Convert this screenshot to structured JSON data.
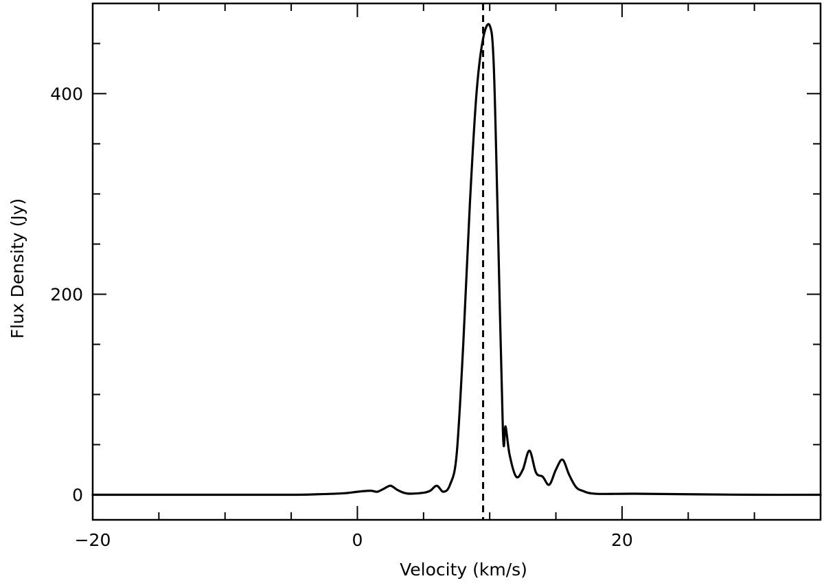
{
  "chart_data": {
    "type": "line",
    "title": "",
    "xlabel": "Velocity (km/s)",
    "ylabel": "Flux Density (Jy)",
    "xlim": [
      -20,
      35
    ],
    "ylim": [
      -25,
      490
    ],
    "x_ticks": [
      -20,
      0,
      20
    ],
    "x_tick_labels": [
      "−20",
      "0",
      "20"
    ],
    "y_ticks": [
      0,
      200,
      400
    ],
    "y_tick_labels": [
      "0",
      "200",
      "400"
    ],
    "x_minor_step": 5,
    "y_minor_step": 50,
    "grid": false,
    "reference_line": {
      "x": 9.5,
      "style": "dashed"
    },
    "series": [
      {
        "x": [
          -20,
          -10,
          -5,
          -3,
          -1,
          0,
          1,
          1.5,
          2,
          2.5,
          3,
          3.5,
          4,
          5,
          5.5,
          6,
          6.5,
          7,
          7.5,
          8,
          8.5,
          9,
          9.5,
          10,
          10.3,
          10.6,
          11,
          11.2,
          11.5,
          12,
          12.5,
          13,
          13.5,
          14,
          14.5,
          15,
          15.5,
          16,
          16.5,
          17,
          18,
          21,
          25,
          30,
          35
        ],
        "y": [
          0,
          0,
          0,
          0.5,
          1.5,
          3,
          4,
          3,
          6,
          9,
          5,
          2,
          1,
          2,
          4,
          9,
          3,
          10,
          40,
          150,
          290,
          400,
          455,
          468,
          430,
          280,
          62,
          68,
          40,
          18,
          25,
          44,
          22,
          18,
          10,
          25,
          35,
          20,
          8,
          4,
          1,
          1,
          0.5,
          0,
          0
        ]
      }
    ]
  }
}
